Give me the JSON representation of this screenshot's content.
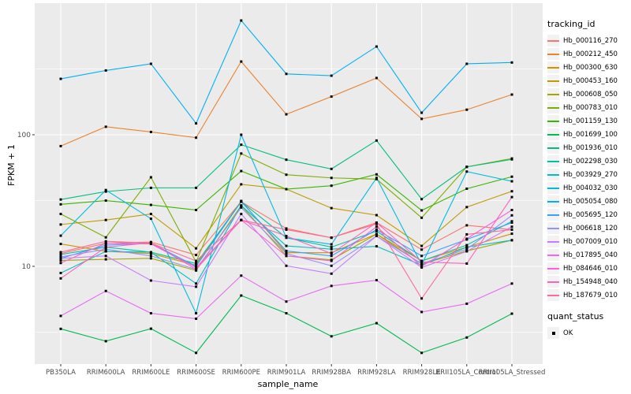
{
  "figure": {
    "y_axis_title": "FPKM + 1",
    "x_axis_title": "sample_name",
    "legend": {
      "tracking_title": "tracking_id",
      "quant_title": "quant_status",
      "quant_label": "OK"
    }
  },
  "colors": {
    "background": "#FFFFFF",
    "panel_bg": "#EBEBEB",
    "grid": "#FFFFFF",
    "point": "#000000",
    "axis_text": "#4D4D4D",
    "tick_mark": "#333333",
    "legend_key_bg": "#F2F2F2"
  },
  "chart_data": {
    "type": "line",
    "title": "",
    "xlabel": "sample_name",
    "ylabel": "FPKM + 1",
    "y_scale": "log10",
    "ylim": [
      1.4,
      1000
    ],
    "y_major_ticks": [
      100,
      10
    ],
    "y_minor_gridlines": [
      316,
      31.6,
      3.16
    ],
    "grid": true,
    "legend_position": "right",
    "point_marker": "black-square",
    "quant_status": "OK",
    "categories": [
      "PB350LA",
      "RRIM600LA",
      "RRIM600LE",
      "RRIM600SE",
      "RRIM600PE",
      "RRIM901LA",
      "RRIM928BA",
      "RRIM928LA",
      "RRIM928LE",
      "RRII105LA_Control",
      "RRII105LA_Stressed"
    ],
    "series": [
      {
        "name": "Hb_000116_270",
        "color": "#F8766D",
        "values": [
          12.5,
          15,
          15.3,
          12.2,
          31,
          19.4,
          16.5,
          21.5,
          13.4,
          20.5,
          19
        ]
      },
      {
        "name": "Hb_000212_450",
        "color": "#EA8331",
        "values": [
          82,
          115,
          105,
          95,
          360,
          143,
          195,
          270,
          132,
          155,
          202
        ]
      },
      {
        "name": "Hb_000300_630",
        "color": "#D89000",
        "values": [
          14.8,
          13,
          12.5,
          10.2,
          31.4,
          12.7,
          12.7,
          17.6,
          11,
          14,
          17.7
        ]
      },
      {
        "name": "Hb_000453_160",
        "color": "#C09B00",
        "values": [
          20.8,
          22.5,
          25,
          13.7,
          42,
          38.6,
          27.7,
          24.5,
          14.3,
          28.2,
          37.2
        ]
      },
      {
        "name": "Hb_000608_050",
        "color": "#A3A500",
        "values": [
          11.1,
          11.3,
          11.5,
          9.3,
          29,
          12,
          11.2,
          17.6,
          10.4,
          13.1,
          15.8
        ]
      },
      {
        "name": "Hb_000783_010",
        "color": "#7CAE00",
        "values": [
          25,
          16.6,
          47.5,
          10.8,
          72,
          49.7,
          47,
          46,
          23.4,
          57,
          66
        ]
      },
      {
        "name": "Hb_001159_130",
        "color": "#39B600",
        "values": [
          29.6,
          31.6,
          29.3,
          26.8,
          53,
          38.6,
          41,
          50,
          26.6,
          38.9,
          48
        ]
      },
      {
        "name": "Hb_001699_100",
        "color": "#00BB4E",
        "values": [
          3.35,
          2.7,
          3.36,
          2.2,
          6.0,
          4.4,
          2.94,
          3.7,
          2.2,
          2.88,
          4.37
        ]
      },
      {
        "name": "Hb_001936_010",
        "color": "#00BF7D",
        "values": [
          32.2,
          37,
          39.5,
          39.5,
          84,
          64.6,
          55,
          90.4,
          32.4,
          57,
          65
        ]
      },
      {
        "name": "Hb_002298_030",
        "color": "#00C1A3",
        "values": [
          12.3,
          14,
          12.8,
          10.5,
          31,
          16.5,
          14,
          18.5,
          11,
          14.5,
          22
        ]
      },
      {
        "name": "Hb_003929_270",
        "color": "#00BFC4",
        "values": [
          8.9,
          13,
          12.8,
          7.4,
          29,
          14.3,
          13.5,
          14.2,
          10.2,
          14,
          15.8
        ]
      },
      {
        "name": "Hb_004032_030",
        "color": "#00BAE0",
        "values": [
          17.1,
          38,
          23,
          4.4,
          100,
          16.5,
          14.7,
          47,
          10.3,
          52.5,
          44.3
        ]
      },
      {
        "name": "Hb_005054_080",
        "color": "#00B0F6",
        "values": [
          266,
          308,
          346,
          122,
          738,
          290,
          281,
          468,
          147,
          346,
          354
        ]
      },
      {
        "name": "Hb_005695_120",
        "color": "#35A2FF",
        "values": [
          11.5,
          14.5,
          15,
          10,
          31,
          13.1,
          12,
          19,
          12,
          16,
          21.5
        ]
      },
      {
        "name": "Hb_006618_120",
        "color": "#9590FF",
        "values": [
          11.8,
          13.5,
          12,
          9.5,
          28,
          12.5,
          10.1,
          17,
          10.5,
          13.5,
          24.4
        ]
      },
      {
        "name": "Hb_007009_010",
        "color": "#C77CFF",
        "values": [
          11.5,
          12,
          7.8,
          7.0,
          25,
          10.1,
          8.8,
          17,
          9.8,
          13,
          20
        ]
      },
      {
        "name": "Hb_017895_040",
        "color": "#E76BF3",
        "values": [
          4.2,
          6.5,
          4.4,
          4.0,
          8.5,
          5.4,
          7.1,
          7.85,
          4.5,
          5.2,
          7.4
        ]
      },
      {
        "name": "Hb_084646_010",
        "color": "#FA62DB",
        "values": [
          10.6,
          15,
          14.8,
          9.8,
          22.5,
          12,
          11,
          20,
          10,
          16.2,
          26.8
        ]
      },
      {
        "name": "Hb_154948_040",
        "color": "#FF62BC",
        "values": [
          8.1,
          14,
          15.1,
          9.5,
          22.5,
          17,
          12.5,
          21.5,
          10.8,
          10.5,
          33.6
        ]
      },
      {
        "name": "Hb_187679_010",
        "color": "#FF6A98",
        "values": [
          12.8,
          15.5,
          15,
          11,
          22.5,
          19,
          16.5,
          21,
          5.7,
          17.5,
          19
        ]
      }
    ]
  }
}
